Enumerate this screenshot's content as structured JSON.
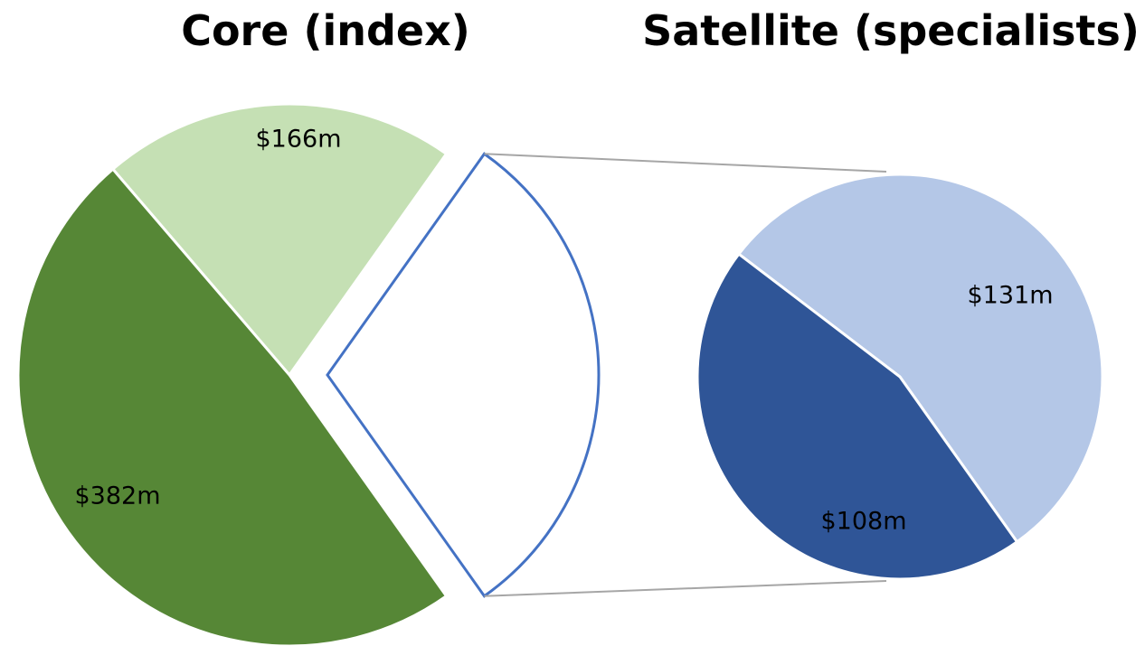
{
  "chart_data": [
    {
      "type": "pie",
      "title": "Core (index)",
      "values": [
        166,
        382
      ],
      "value_labels": [
        "$166m",
        "$382m"
      ],
      "colors": [
        "#c5e0b4",
        "#568736"
      ],
      "split_outline": "#4472c4"
    },
    {
      "type": "pie",
      "title": "Satellite (specialists)",
      "values": [
        131,
        108
      ],
      "value_labels": [
        "$131m",
        "$108m"
      ],
      "colors": [
        "#b4c7e7",
        "#2f5597"
      ]
    }
  ]
}
